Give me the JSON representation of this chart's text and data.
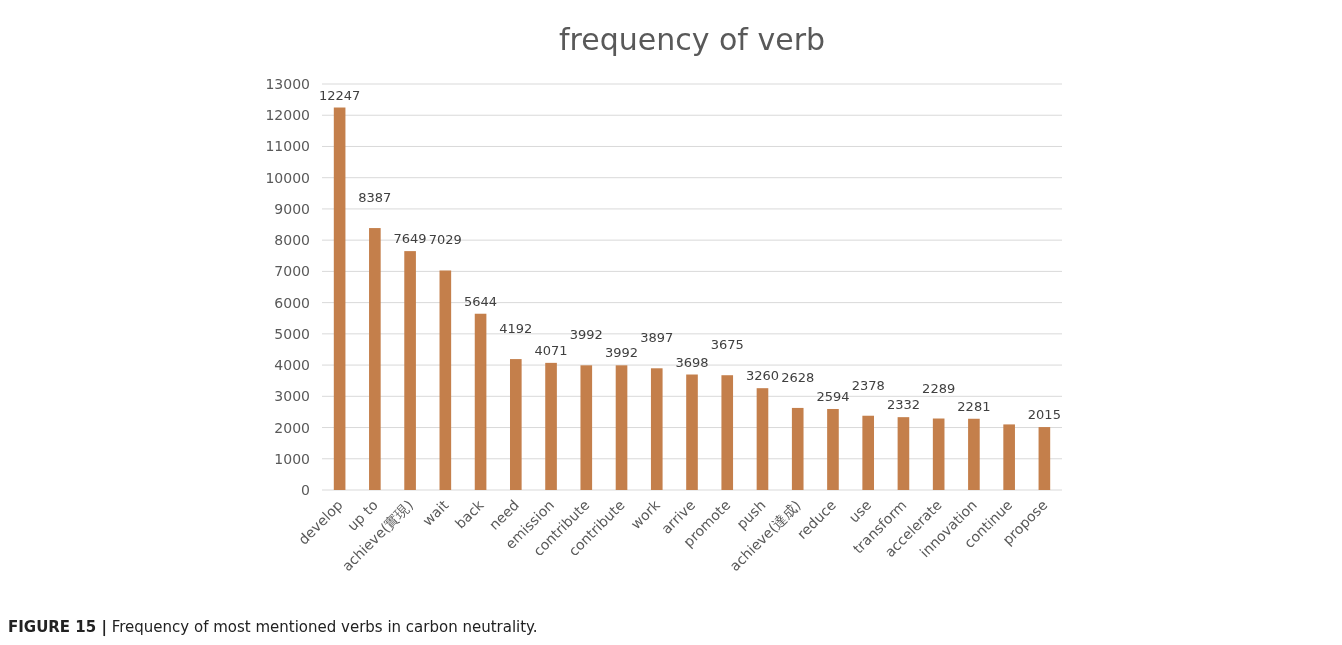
{
  "chart_data": {
    "type": "bar",
    "title": "frequency of verb",
    "categories": [
      "develop",
      "up to",
      "achieve(實現)",
      "wait",
      "back",
      "need",
      "emission",
      "contribute",
      "contribute",
      "work",
      "arrive",
      "promote",
      "push",
      "achieve(達成)",
      "reduce",
      "use",
      "transform",
      "accelerate",
      "innovation",
      "continue",
      "propose"
    ],
    "values": [
      12247,
      8387,
      7649,
      7029,
      5644,
      4192,
      4071,
      3992,
      3992,
      3897,
      3698,
      3675,
      3260,
      2628,
      2594,
      2378,
      2332,
      2289,
      2281,
      2100,
      2015
    ],
    "value_labels": [
      "12247",
      "8387",
      "7649",
      "7029",
      "5644",
      "4192",
      "4071",
      "3992",
      "3992",
      "3897",
      "3698",
      "3675",
      "3260",
      "2628",
      "2594",
      "2378",
      "2332",
      "2289",
      "2281",
      null,
      "2015"
    ],
    "color": "#c47f4b",
    "ylim": [
      0,
      13000
    ],
    "yticks": [
      0,
      1000,
      2000,
      3000,
      4000,
      5000,
      6000,
      7000,
      8000,
      9000,
      10000,
      11000,
      12000,
      13000
    ],
    "grid": "y",
    "annotations": [
      "**FIGURE 15 |** Frequency of most mentioned verbs in carbon neutrality."
    ]
  }
}
